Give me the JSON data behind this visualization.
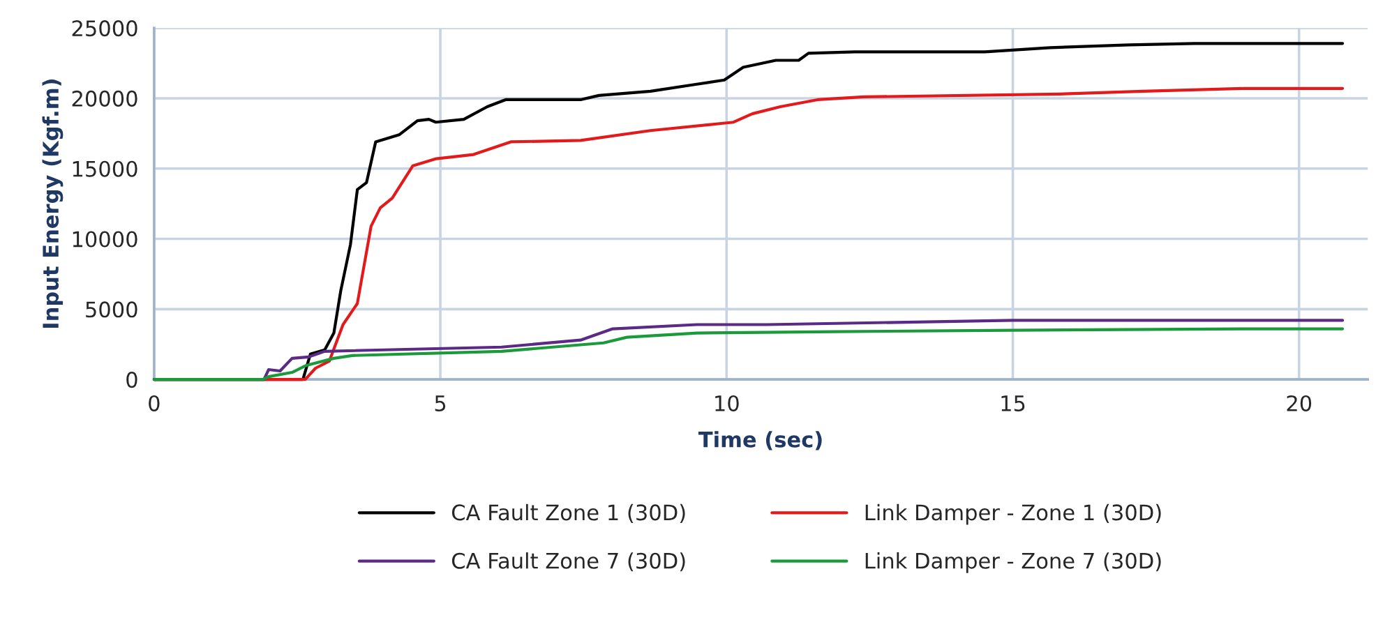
{
  "chart_data": {
    "type": "line",
    "xlabel": "Time (sec)",
    "ylabel": "Input Energy (Kgf.m)",
    "xlim": [
      0,
      21.2
    ],
    "xticks": [
      0,
      5,
      10,
      15,
      20
    ],
    "ylim": [
      0,
      25000
    ],
    "yticks": [
      0,
      5000,
      10000,
      15000,
      20000,
      25000
    ],
    "grid": true,
    "legend": "bottom",
    "marker": "none",
    "line_style": "solid",
    "series": [
      {
        "name": "CA Fault Zone 1 (30D)",
        "color": "#000000",
        "x": [
          0,
          2.6,
          2.73,
          2.98,
          3.14,
          3.26,
          3.43,
          3.55,
          3.71,
          3.87,
          4.28,
          4.6,
          4.8,
          4.92,
          5.41,
          5.82,
          6.14,
          7.45,
          7.77,
          8.67,
          9.48,
          9.96,
          10.29,
          10.86,
          11.26,
          11.43,
          12.24,
          14.51,
          15.65,
          17.03,
          18.17,
          20.76
        ],
        "values": [
          0,
          0,
          1800,
          2100,
          3300,
          6300,
          9600,
          13500,
          14000,
          16900,
          17400,
          18400,
          18500,
          18300,
          18500,
          19400,
          19900,
          19900,
          20200,
          20500,
          21000,
          21300,
          22200,
          22700,
          22700,
          23200,
          23300,
          23300,
          23600,
          23800,
          23900,
          23900
        ]
      },
      {
        "name": "Link Damper - Zone 1 (30D)",
        "color": "#e31a1c",
        "x": [
          0,
          2.64,
          2.82,
          3.06,
          3.3,
          3.55,
          3.79,
          3.95,
          4.16,
          4.52,
          4.93,
          5.58,
          6.23,
          7.45,
          8.67,
          9.88,
          10.12,
          10.45,
          10.94,
          11.59,
          12.4,
          15.81,
          17.27,
          19.05,
          20.76
        ],
        "values": [
          0,
          0,
          800,
          1300,
          3900,
          5400,
          10900,
          12200,
          12900,
          15200,
          15700,
          16000,
          16900,
          17000,
          17700,
          18200,
          18300,
          18900,
          19400,
          19900,
          20100,
          20300,
          20500,
          20700,
          20700
        ]
      },
      {
        "name": "CA Fault Zone 7 (30D)",
        "color": "#5b2a86",
        "x": [
          0,
          1.92,
          2.0,
          2.2,
          2.41,
          2.7,
          2.98,
          6.07,
          7.45,
          8.01,
          9.48,
          10.7,
          15.0,
          20.76
        ],
        "values": [
          0,
          0,
          700,
          600,
          1500,
          1600,
          2000,
          2300,
          2800,
          3600,
          3900,
          3900,
          4200,
          4200
        ]
      },
      {
        "name": "Link Damper - Zone 7 (30D)",
        "color": "#1a9a3a",
        "x": [
          0,
          1.9,
          2.0,
          2.41,
          2.66,
          3.14,
          3.46,
          6.07,
          7.85,
          8.26,
          9.48,
          11.91,
          14.98,
          19.29,
          20.76
        ],
        "values": [
          0,
          0,
          200,
          500,
          1000,
          1500,
          1700,
          2000,
          2600,
          3000,
          3300,
          3400,
          3500,
          3600,
          3600
        ]
      }
    ]
  }
}
